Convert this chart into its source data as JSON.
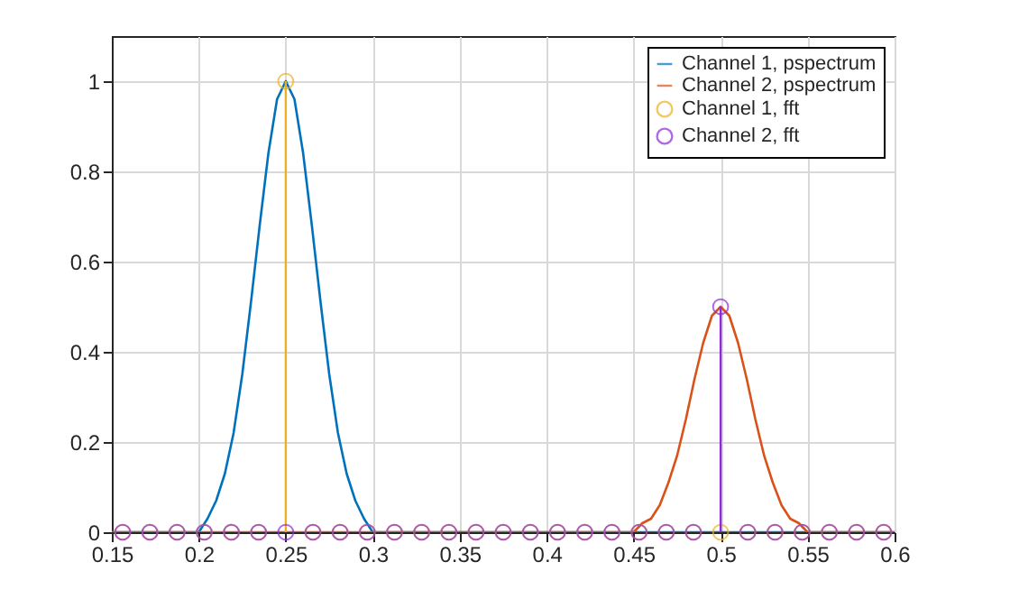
{
  "chart_data": {
    "type": "line",
    "xlim": [
      0.15,
      0.6
    ],
    "xticks": [
      0.15,
      0.2,
      0.25,
      0.3,
      0.35,
      0.4,
      0.45,
      0.5,
      0.55,
      0.6
    ],
    "ylim": [
      0,
      1.1
    ],
    "yticks": [
      0,
      0.2,
      0.4,
      0.6,
      0.8,
      1
    ],
    "grid": true,
    "legend": "top right",
    "series": [
      {
        "name": "Channel 1, pspectrum",
        "color": "#0072bd",
        "marker": "none",
        "x": [
          0.15,
          0.2,
          0.205,
          0.21,
          0.215,
          0.22,
          0.225,
          0.23,
          0.235,
          0.24,
          0.245,
          0.25,
          0.255,
          0.26,
          0.265,
          0.27,
          0.275,
          0.28,
          0.285,
          0.29,
          0.295,
          0.3,
          0.6
        ],
        "values": [
          0,
          0,
          0.03,
          0.07,
          0.13,
          0.22,
          0.35,
          0.51,
          0.68,
          0.84,
          0.96,
          1,
          0.96,
          0.84,
          0.68,
          0.51,
          0.35,
          0.22,
          0.13,
          0.07,
          0.03,
          0,
          0
        ]
      },
      {
        "name": "Channel 2, pspectrum",
        "color": "#d95319",
        "marker": "none",
        "x": [
          0.15,
          0.45,
          0.455,
          0.46,
          0.465,
          0.47,
          0.475,
          0.48,
          0.485,
          0.49,
          0.495,
          0.5,
          0.505,
          0.51,
          0.515,
          0.52,
          0.525,
          0.53,
          0.535,
          0.54,
          0.545,
          0.55,
          0.6
        ],
        "values": [
          0,
          0,
          0.02,
          0.03,
          0.06,
          0.11,
          0.17,
          0.25,
          0.34,
          0.42,
          0.48,
          0.5,
          0.48,
          0.42,
          0.34,
          0.25,
          0.17,
          0.11,
          0.06,
          0.03,
          0.02,
          0,
          0
        ]
      },
      {
        "name": "Channel 1, fft",
        "type": "lollipop",
        "color": "#edb120",
        "marker": "circle",
        "x": [
          0.15625,
          0.171875,
          0.1875,
          0.203125,
          0.21875,
          0.234375,
          0.25,
          0.265625,
          0.28125,
          0.296875,
          0.3125,
          0.328125,
          0.34375,
          0.359375,
          0.375,
          0.390625,
          0.40625,
          0.421875,
          0.4375,
          0.453125,
          0.46875,
          0.484375,
          0.5,
          0.515625,
          0.53125,
          0.546875,
          0.5625,
          0.578125,
          0.59375
        ],
        "values": [
          0,
          0,
          0,
          0,
          0,
          0,
          1,
          0,
          0,
          0,
          0,
          0,
          0,
          0,
          0,
          0,
          0,
          0,
          0,
          0,
          0,
          0,
          0,
          0,
          0,
          0,
          0,
          0,
          0
        ]
      },
      {
        "name": "Channel 2, fft",
        "type": "lollipop",
        "color": "#8e2bd6",
        "marker": "circle",
        "x": [
          0.15625,
          0.171875,
          0.1875,
          0.203125,
          0.21875,
          0.234375,
          0.25,
          0.265625,
          0.28125,
          0.296875,
          0.3125,
          0.328125,
          0.34375,
          0.359375,
          0.375,
          0.390625,
          0.40625,
          0.421875,
          0.4375,
          0.453125,
          0.46875,
          0.484375,
          0.5,
          0.515625,
          0.53125,
          0.546875,
          0.5625,
          0.578125,
          0.59375
        ],
        "values": [
          0,
          0,
          0,
          0,
          0,
          0,
          0,
          0,
          0,
          0,
          0,
          0,
          0,
          0,
          0,
          0,
          0,
          0,
          0,
          0,
          0,
          0,
          0.5,
          0,
          0,
          0,
          0,
          0,
          0
        ]
      }
    ]
  }
}
